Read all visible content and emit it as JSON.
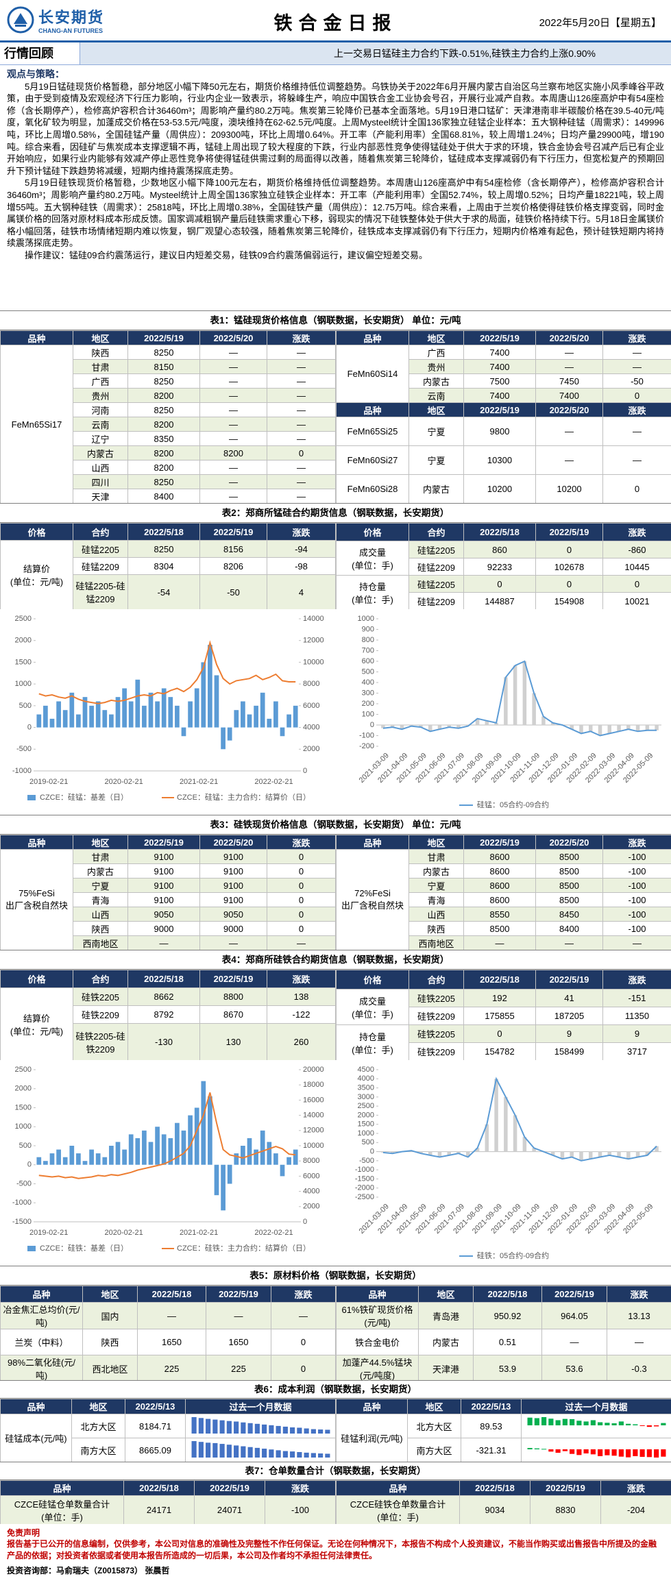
{
  "header": {
    "company": "长安期货",
    "company_en": "CHANG-AN FUTURES",
    "title": "铁合金日报",
    "date": "2022年5月20日【星期五】"
  },
  "review": {
    "label": "行情回顾",
    "summary": "上一交易日锰硅主力合约下跌-0.51%,硅铁主力合约上涨0.90%"
  },
  "viewpoint": {
    "heading": "观点与策略：",
    "paragraphs": [
      "5月19日锰硅现货价格暂稳，部分地区小幅下降50元左右，期货价格维持低位调整趋势。乌铁协关于2022年6月开展内蒙古自治区乌兰察布地区实施小风季峰谷平政策，由于受到疫情及宏观经济下行压力影响，行业内企业一致表示，将躲峰生产，响应中国铁合金工业协会号召，开展行业减产自救。本周唐山126座高炉中有54座检修（含长期停产），检修高炉容积合计36460m³；周影响产量约80.2万吨。焦炭第三轮降价已基本全面落地。5月19日港口锰矿：天津港南非半碳酸价格在39.5-40元/吨度，氧化矿较为明显，加蓬成交价格在53-53.5元/吨度，澳块维持在62-62.5元/吨度。上周Mysteel统计全国136家独立硅锰企业样本：五大钢种硅锰（周需求）：149996吨，环比上周增0.58%，全国硅锰产量（周供应）：209300吨，环比上周增0.64%。开工率（产能利用率）全国68.81%，较上周增1.24%；日均产量29900吨，增190吨。综合来看，因硅矿与焦炭成本支撑逻辑不再，锰硅上周出现了较大程度的下跌，行业内部恶性竞争使得锰硅处于供大于求的环境，铁合金协会号召减产后已有企业开始响应，如果行业内能够有效减产停止恶性竞争将使得锰硅供需过剩的局面得以改善，随着焦炭第三轮降价，锰硅成本支撑减弱仍有下行压力，但宽松复产的预期回升下预计锰硅下跌趋势将减缓，短期内维持震荡探底走势。",
      "5月19日硅铁现货价格暂稳，少数地区小幅下降100元左右，期货价格维持低位调整趋势。本周唐山126座高炉中有54座检修（含长期停产），检修高炉容积合计36460m³；周影响产量约80.2万吨。Mysteel统计上周全国136家独立硅铁企业样本：开工率（产能利用率）全国52.74%，较上周增0.52%；日均产量18221吨，较上周增55吨。五大钢种硅铁（周需求）：25818吨，环比上周增0.38%，全国硅铁产量（周供应）：12.75万吨。综合来看，上周由于兰炭价格使得硅铁价格支撑变弱，同时金属镁价格的回落对原材料成本形成反馈。国家调减粗钢产量后硅铁需求重心下移，弱现实的情况下硅铁整体处于供大于求的局面，硅铁价格持续下行。5月18日金属镁价格小幅回落，硅铁市场情绪短期内难以恢复，钢厂观望心态较强，随着焦炭第三轮降价，硅铁成本支撑减弱仍有下行压力，短期内价格难有起色，预计硅铁短期内将持续震荡探底走势。",
      "操作建议：锰硅09合约震荡运行，建议日内短差交易，硅铁09合约震荡偏弱运行，建议偏空短差交易。"
    ]
  },
  "table1": {
    "title": "表1：锰硅现货价格信息（钢联数据，长安期货） 单位：元/吨",
    "header": [
      "品种",
      "地区",
      "2022/5/19",
      "2022/5/20",
      "涨跌"
    ],
    "left": {
      "variety": "FeMn65Si17",
      "rows": [
        [
          "陕西",
          8250,
          "—",
          "—"
        ],
        [
          "甘肃",
          8150,
          "—",
          "—"
        ],
        [
          "广西",
          8250,
          "—",
          "—"
        ],
        [
          "贵州",
          8200,
          "—",
          "—"
        ],
        [
          "河南",
          8250,
          "—",
          "—"
        ],
        [
          "云南",
          8200,
          "—",
          "—"
        ],
        [
          "辽宁",
          8350,
          "—",
          "—"
        ],
        [
          "内蒙古",
          8200,
          8200,
          0
        ],
        [
          "山西",
          8200,
          "—",
          "—"
        ],
        [
          "四川",
          8250,
          "—",
          "—"
        ],
        [
          "天津",
          8400,
          "—",
          "—"
        ]
      ]
    },
    "right": [
      {
        "variety": "FeMn60Si14",
        "rows": [
          [
            "广西",
            7400,
            "—",
            "—"
          ],
          [
            "贵州",
            7400,
            "—",
            "—"
          ],
          [
            "内蒙古",
            7500,
            7450,
            -50
          ],
          [
            "云南",
            7400,
            7400,
            0
          ]
        ]
      },
      {
        "variety": "FeMn65Si25",
        "rows": [
          [
            "宁夏",
            9800,
            "—",
            "—"
          ]
        ]
      },
      {
        "variety": "FeMn60Si27",
        "rows": [
          [
            "宁夏",
            10300,
            "—",
            "—"
          ]
        ]
      },
      {
        "variety": "FeMn60Si28",
        "rows": [
          [
            "内蒙古",
            10200,
            10200,
            0
          ]
        ]
      }
    ]
  },
  "table2": {
    "title": "表2：郑商所锰硅合约期货信息（钢联数据，长安期货）",
    "header": [
      "价格",
      "合约",
      "2022/5/18",
      "2022/5/19",
      "涨跌"
    ],
    "left": {
      "label": "结算价",
      "unit": "(单位：元/吨)",
      "rows": [
        [
          "硅锰2205",
          8250,
          8156,
          -94
        ],
        [
          "硅锰2209",
          8304,
          8206,
          -98
        ],
        [
          "硅锰2205-硅锰2209",
          -54,
          -50,
          4
        ]
      ]
    },
    "right": [
      {
        "label": "成交量",
        "unit": "(单位：手)",
        "rows": [
          [
            "硅锰2205",
            860,
            0,
            -860
          ],
          [
            "硅锰2209",
            92233,
            102678,
            10445
          ]
        ]
      },
      {
        "label": "持仓量",
        "unit": "(单位：手)",
        "rows": [
          [
            "硅锰2205",
            0,
            0,
            0
          ],
          [
            "硅锰2209",
            144887,
            154908,
            10021
          ]
        ]
      }
    ]
  },
  "charts": [
    {
      "type": "combo",
      "xticks": [
        "2019-02-21",
        "2020-02-21",
        "2021-02-21",
        "2022-02-21"
      ],
      "ylim": [
        -1000,
        2500
      ],
      "yticks": [
        -1000,
        -500,
        0,
        500,
        1000,
        1500,
        2000,
        2500
      ],
      "y2lim": [
        0,
        14000
      ],
      "y2ticks": [
        0,
        2000,
        4000,
        6000,
        8000,
        10000,
        12000,
        14000
      ],
      "series": [
        {
          "name": "CZCE：硅锰：基差（日）",
          "kind": "bar",
          "color": "#5b9bd5",
          "values": [
            300,
            500,
            200,
            600,
            400,
            800,
            300,
            700,
            500,
            600,
            400,
            300,
            700,
            900,
            600,
            1100,
            500,
            800,
            600,
            900,
            700,
            500,
            -200,
            600,
            900,
            1500,
            1900,
            1200,
            -500,
            -300,
            400,
            600,
            300,
            500,
            800,
            200,
            600,
            -200,
            300,
            500
          ]
        },
        {
          "name": "CZCE：硅锰：主力合约：结算价（日）",
          "kind": "line",
          "axis": "y2",
          "color": "#ed7d31",
          "values": [
            7100,
            6900,
            7000,
            6800,
            6700,
            6900,
            6600,
            6400,
            6300,
            6200,
            6300,
            6500,
            6400,
            6500,
            6700,
            6900,
            7000,
            6900,
            7200,
            7100,
            7400,
            7600,
            7300,
            7700,
            8400,
            9500,
            11800,
            9800,
            8500,
            8000,
            8300,
            8400,
            8500,
            8800,
            8400,
            8600,
            8900,
            8300,
            8200,
            8200
          ]
        }
      ]
    },
    {
      "type": "line",
      "xticks": [
        "2021-03-09",
        "2021-04-09",
        "2021-05-09",
        "2021-06-09",
        "2021-07-09",
        "2021-08-09",
        "2021-09-09",
        "2021-10-09",
        "2021-11-09",
        "2021-12-09",
        "2022-01-09",
        "2022-02-09",
        "2022-03-09",
        "2022-04-09",
        "2022-05-09"
      ],
      "ylim": [
        -200,
        1000
      ],
      "yticks": [
        -200,
        -100,
        0,
        100,
        200,
        300,
        400,
        500,
        600,
        700,
        800,
        900,
        1000
      ],
      "series": [
        {
          "name": "硅锰：05合约-09合约",
          "color": "#5b9bd5",
          "fill": "#d0d0d0",
          "values": [
            -30,
            -20,
            -40,
            -10,
            -20,
            -60,
            -40,
            -20,
            -30,
            -10,
            60,
            40,
            20,
            450,
            560,
            600,
            300,
            80,
            20,
            0,
            -40,
            -80,
            -60,
            -100,
            -80,
            -60,
            -40,
            -60,
            -50,
            -50
          ]
        }
      ]
    },
    {
      "type": "combo",
      "xticks": [
        "2019-02-21",
        "2020-02-21",
        "2021-02-21",
        "2022-02-21"
      ],
      "ylim": [
        -1500,
        2500
      ],
      "yticks": [
        -1500,
        -1000,
        -500,
        0,
        500,
        1000,
        1500,
        2000,
        2500
      ],
      "y2lim": [
        0,
        20000
      ],
      "y2ticks": [
        0,
        2000,
        4000,
        6000,
        8000,
        10000,
        12000,
        14000,
        16000,
        18000,
        20000
      ],
      "series": [
        {
          "name": "CZCE：硅铁：基差（日）",
          "kind": "bar",
          "color": "#5b9bd5",
          "values": [
            200,
            100,
            300,
            400,
            200,
            500,
            300,
            100,
            400,
            300,
            200,
            500,
            600,
            400,
            800,
            700,
            900,
            600,
            1000,
            800,
            700,
            1100,
            900,
            1300,
            1500,
            2200,
            1800,
            -800,
            -1200,
            -500,
            300,
            500,
            700,
            400,
            900,
            600,
            300,
            -300,
            200,
            400
          ]
        },
        {
          "name": "CZCE：硅铁：主力合约：结算价（日）",
          "kind": "line",
          "axis": "y2",
          "color": "#ed7d31",
          "values": [
            6100,
            6000,
            5900,
            6000,
            5800,
            5900,
            5700,
            5800,
            5900,
            6100,
            6000,
            6200,
            6100,
            6300,
            6500,
            6800,
            7000,
            7200,
            7400,
            7600,
            8000,
            8500,
            9000,
            10000,
            12000,
            14000,
            17000,
            13000,
            9500,
            8800,
            8600,
            8400,
            8700,
            9000,
            9300,
            9600,
            9900,
            9600,
            8900,
            8800
          ]
        }
      ]
    },
    {
      "type": "line",
      "xticks": [
        "2021-03-09",
        "2021-04-09",
        "2021-05-09",
        "2021-06-09",
        "2021-07-09",
        "2021-08-09",
        "2021-09-09",
        "2021-10-09",
        "2021-11-09",
        "2021-12-09",
        "2022-01-09",
        "2022-02-09",
        "2022-03-09",
        "2022-04-09",
        "2022-05-09"
      ],
      "ylim": [
        -2500,
        4500
      ],
      "yticks": [
        -2500,
        -2000,
        -1500,
        -1000,
        -500,
        0,
        500,
        1000,
        1500,
        2000,
        2500,
        3000,
        3500,
        4000,
        4500
      ],
      "series": [
        {
          "name": "硅铁：05合约-09合约",
          "color": "#5b9bd5",
          "fill": "#d0d0d0",
          "values": [
            -50,
            -100,
            0,
            50,
            -100,
            -200,
            -300,
            -200,
            -100,
            -300,
            200,
            1500,
            4000,
            3000,
            2000,
            800,
            200,
            0,
            -200,
            -400,
            -300,
            -500,
            -400,
            -300,
            -200,
            -300,
            -400,
            -300,
            -200,
            300
          ]
        }
      ]
    }
  ],
  "table3": {
    "title": "表3：硅铁现货价格信息（钢联数据，长安期货） 单位：元/吨",
    "header": [
      "品种",
      "地区",
      "2022/5/19",
      "2022/5/20",
      "涨跌"
    ],
    "left": {
      "variety": "75%FeSi",
      "variety_note": "出厂含税自然块",
      "rows": [
        [
          "甘肃",
          9100,
          9100,
          0
        ],
        [
          "内蒙古",
          9100,
          9100,
          0
        ],
        [
          "宁夏",
          9100,
          9100,
          0
        ],
        [
          "青海",
          9100,
          9100,
          0
        ],
        [
          "山西",
          9050,
          9050,
          0
        ],
        [
          "陕西",
          9000,
          9000,
          0
        ],
        [
          "西南地区",
          "—",
          "—",
          "—"
        ]
      ]
    },
    "right": {
      "variety": "72%FeSi",
      "variety_note": "出厂含税自然块",
      "rows": [
        [
          "甘肃",
          8600,
          8500,
          -100
        ],
        [
          "内蒙古",
          8600,
          8500,
          -100
        ],
        [
          "宁夏",
          8600,
          8500,
          -100
        ],
        [
          "青海",
          8600,
          8500,
          -100
        ],
        [
          "山西",
          8550,
          8450,
          -100
        ],
        [
          "陕西",
          8500,
          8400,
          -100
        ],
        [
          "西南地区",
          "—",
          "—",
          "—"
        ]
      ]
    }
  },
  "table4": {
    "title": "表4：郑商所硅铁合约期货信息（钢联数据，长安期货）",
    "header": [
      "价格",
      "合约",
      "2022/5/18",
      "2022/5/19",
      "涨跌"
    ],
    "left": {
      "label": "结算价",
      "unit": "(单位：元/吨)",
      "rows": [
        [
          "硅铁2205",
          8662,
          8800,
          138
        ],
        [
          "硅铁2209",
          8792,
          8670,
          -122
        ],
        [
          "硅铁2205-硅铁2209",
          -130,
          130,
          260
        ]
      ]
    },
    "right": [
      {
        "label": "成交量",
        "unit": "(单位：手)",
        "rows": [
          [
            "硅铁2205",
            192,
            41,
            -151
          ],
          [
            "硅铁2209",
            175855,
            187205,
            11350
          ]
        ]
      },
      {
        "label": "持仓量",
        "unit": "(单位：手)",
        "rows": [
          [
            "硅铁2205",
            0,
            9,
            9
          ],
          [
            "硅铁2209",
            154782,
            158499,
            3717
          ]
        ]
      }
    ]
  },
  "table5": {
    "title": "表5：原材料价格（钢联数据，长安期货）",
    "header": [
      "品种",
      "地区",
      "2022/5/18",
      "2022/5/19",
      "涨跌"
    ],
    "left": [
      [
        "冶金焦汇总均价(元/吨)",
        "国内",
        "—",
        "—",
        "—"
      ],
      [
        "兰炭（中料）",
        "陕西",
        1650,
        1650,
        0
      ],
      [
        "98%二氧化硅(元/吨)",
        "西北地区",
        225,
        225,
        0
      ]
    ],
    "right": [
      [
        "61%铁矿现货价格(元/吨)",
        "青岛港",
        950.92,
        964.05,
        13.13
      ],
      [
        "铁合金电价",
        "内蒙古",
        0.51,
        "—",
        "—"
      ],
      [
        "加蓬产44.5%锰块(元/吨度)",
        "天津港",
        53.9,
        53.6,
        -0.3
      ]
    ]
  },
  "table6": {
    "title": "表6：成本利润（钢联数据，长安期货）",
    "header": [
      "品种",
      "地区",
      "2022/5/13",
      "过去一个月数据"
    ],
    "left": {
      "label": "硅锰成本(元/吨)",
      "rows": [
        {
          "region": "北方大区",
          "value": 8184.71,
          "history": [
            8900,
            8850,
            8800,
            8760,
            8720,
            8680,
            8650,
            8600,
            8560,
            8520,
            8480,
            8440,
            8400,
            8360,
            8320,
            8300,
            8260,
            8220,
            8200,
            8184.71
          ]
        },
        {
          "region": "南方大区",
          "value": 8665.09,
          "history": [
            9300,
            9260,
            9220,
            9200,
            9160,
            9120,
            9080,
            9040,
            9000,
            8960,
            8920,
            8880,
            8840,
            8800,
            8780,
            8750,
            8720,
            8700,
            8680,
            8665.09
          ]
        }
      ]
    },
    "right": {
      "label": "硅锰利润(元/吨)",
      "rows": [
        {
          "region": "北方大区",
          "value": 89.53,
          "history": [
            300,
            280,
            320,
            260,
            200,
            250,
            240,
            180,
            150,
            200,
            120,
            100,
            80,
            150,
            60,
            40,
            -20,
            -60,
            -40,
            89.53
          ]
        },
        {
          "region": "南方大区",
          "value": -321.31,
          "history": [
            60,
            40,
            20,
            -100,
            -150,
            -80,
            -200,
            -250,
            -180,
            -220,
            -300,
            -260,
            -280,
            -320,
            -350,
            -300,
            -330,
            -340,
            -360,
            -321.31
          ]
        }
      ]
    }
  },
  "table7": {
    "title": "表7：仓单数量合计（钢联数据，长安期货）",
    "header": [
      "品种",
      "2022/5/18",
      "2022/5/19",
      "涨跌"
    ],
    "left": {
      "label": "CZCE硅锰仓单数量合计",
      "unit": "(单位：手)",
      "values": [
        24171,
        24071,
        -100
      ]
    },
    "right": {
      "label": "CZCE硅铁仓单数量合计",
      "unit": "(单位：手)",
      "values": [
        9034,
        8830,
        -204
      ]
    }
  },
  "footer": {
    "disclaimer_title": "免责声明",
    "disclaimer": "报告基于已公开的信息编制，仅供参考，本公司对信息的准确性及完整性不作任何保证。无论在何种情况下，本报告不构成个人投资建议，不能当作购买或出售报告中所提及的金融产品的依据；对投资者依据或者使用本报告所造成的一切后果，本公司及作者均不承担任何法律责任。",
    "contact": "投资咨询部：马俞瑞夫（Z0015873） 张晨哲"
  }
}
